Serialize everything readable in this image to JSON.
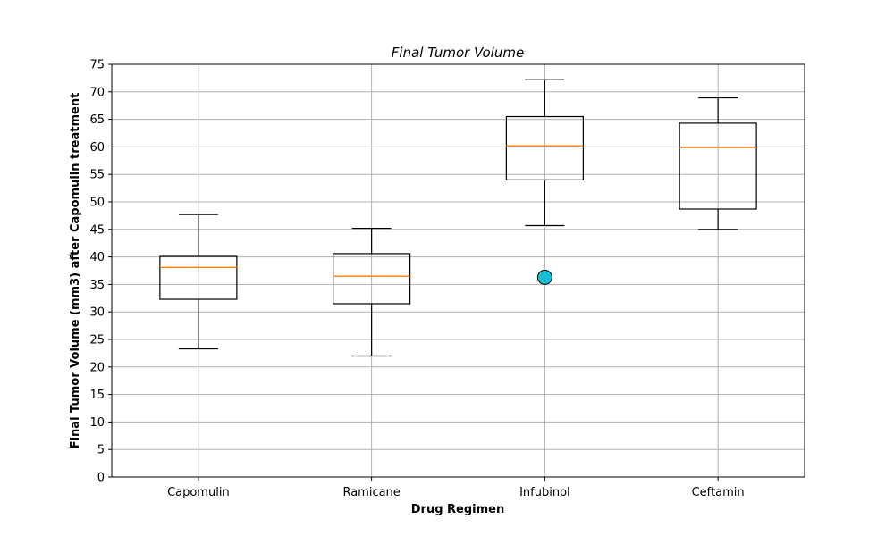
{
  "chart_data": {
    "type": "box",
    "title": "Final Tumor Volume",
    "xlabel": "Drug Regimen",
    "ylabel": "Final Tumor Volume (mm3) after Capomulin treatment",
    "ylim": [
      0,
      75
    ],
    "yticks": [
      0,
      5,
      10,
      15,
      20,
      25,
      30,
      35,
      40,
      45,
      50,
      55,
      60,
      65,
      70,
      75
    ],
    "grid": true,
    "categories": [
      "Capomulin",
      "Ramicane",
      "Infubinol",
      "Ceftamin"
    ],
    "boxes": [
      {
        "name": "Capomulin",
        "whisker_low": 23.3,
        "q1": 32.3,
        "median": 38.1,
        "q3": 40.1,
        "whisker_high": 47.7,
        "outliers": []
      },
      {
        "name": "Ramicane",
        "whisker_low": 22.0,
        "q1": 31.5,
        "median": 36.5,
        "q3": 40.6,
        "whisker_high": 45.2,
        "outliers": []
      },
      {
        "name": "Infubinol",
        "whisker_low": 45.7,
        "q1": 54.0,
        "median": 60.2,
        "q3": 65.5,
        "whisker_high": 72.2,
        "outliers": [
          36.3
        ]
      },
      {
        "name": "Ceftamin",
        "whisker_low": 45.0,
        "q1": 48.7,
        "median": 59.9,
        "q3": 64.3,
        "whisker_high": 68.9,
        "outliers": []
      }
    ],
    "colors": {
      "box": "#000000",
      "median": "#ff7f0e",
      "grid": "#b0b0b0",
      "outlier_fill": "#17becf"
    }
  }
}
